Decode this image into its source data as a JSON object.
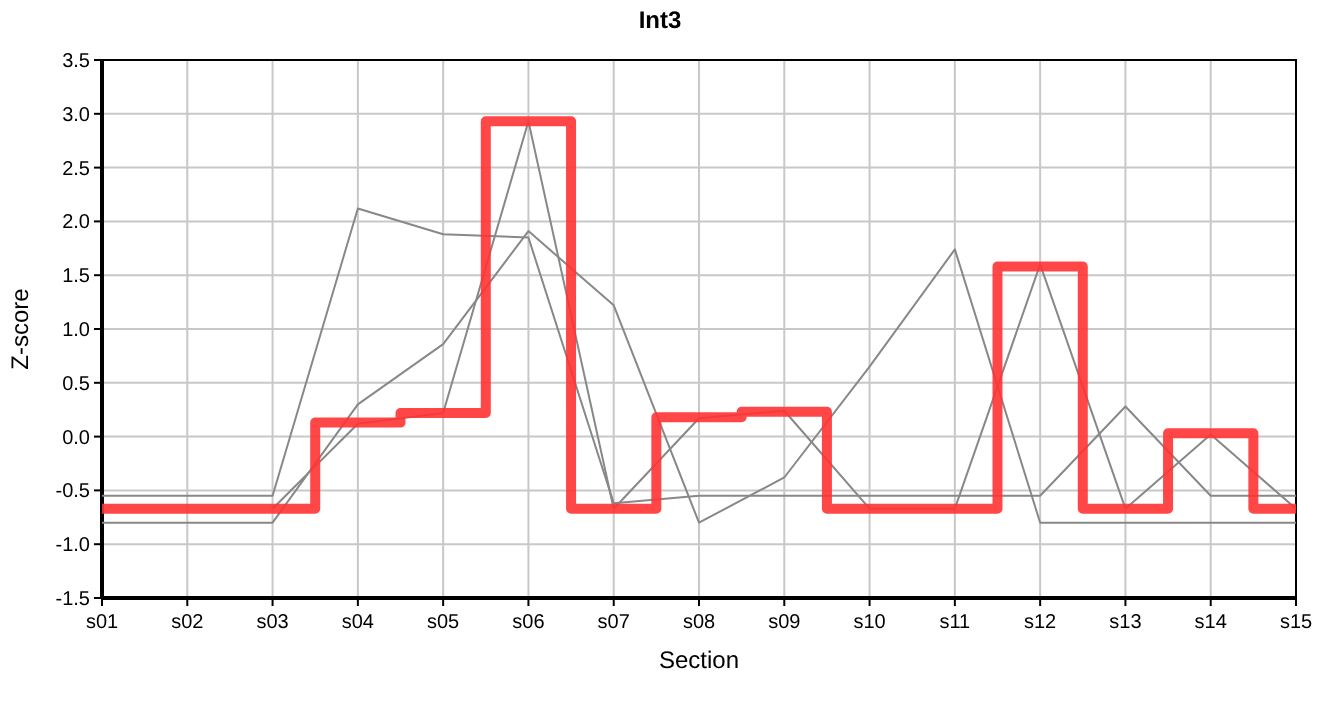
{
  "chart_data": {
    "type": "line",
    "title": "Int3",
    "xlabel": "Section",
    "ylabel": "Z-score",
    "categories": [
      "s01",
      "s02",
      "s03",
      "s04",
      "s05",
      "s06",
      "s07",
      "s08",
      "s09",
      "s10",
      "s11",
      "s12",
      "s13",
      "s14",
      "s15"
    ],
    "series": [
      {
        "color": "#888888",
        "values": [
          -0.55,
          -0.55,
          -0.55,
          2.12,
          1.88,
          1.85,
          -0.62,
          -0.55,
          -0.55,
          -0.55,
          -0.55,
          -0.55,
          0.28,
          -0.55,
          -0.55
        ]
      },
      {
        "color": "#888888",
        "values": [
          -0.8,
          -0.8,
          -0.8,
          0.3,
          0.86,
          1.91,
          1.22,
          -0.8,
          -0.38,
          0.65,
          1.74,
          -0.8,
          -0.8,
          -0.8,
          -0.8
        ]
      },
      {
        "color": "#888888",
        "values": [
          null,
          null,
          -0.67,
          0.12,
          0.22,
          2.93,
          -0.67,
          0.17,
          0.24,
          -0.67,
          -0.67,
          1.6,
          -0.67,
          0.02,
          -0.67
        ]
      },
      {
        "type": "step",
        "color": "#ff3333",
        "values": [
          -0.67,
          -0.67,
          -0.67,
          0.13,
          0.22,
          2.93,
          -0.67,
          0.18,
          0.23,
          -0.67,
          -0.67,
          1.58,
          -0.67,
          0.03,
          -0.67
        ]
      }
    ],
    "ylim": [
      -1.5,
      3.5
    ],
    "yticks": [
      {
        "value": -1.5,
        "label": "-1.5"
      },
      {
        "value": -1,
        "label": "-1.0"
      },
      {
        "value": -0.5,
        "label": "-0.5"
      },
      {
        "value": 0,
        "label": "0.0"
      },
      {
        "value": 0.5,
        "label": "0.5"
      },
      {
        "value": 1,
        "label": "1.0"
      },
      {
        "value": 1.5,
        "label": "1.5"
      },
      {
        "value": 2,
        "label": "2.0"
      },
      {
        "value": 2.5,
        "label": "2.5"
      },
      {
        "value": 3,
        "label": "3.0"
      },
      {
        "value": 3.5,
        "label": "3.5"
      }
    ],
    "grid": true,
    "marker": "none",
    "line_style": "solid"
  }
}
